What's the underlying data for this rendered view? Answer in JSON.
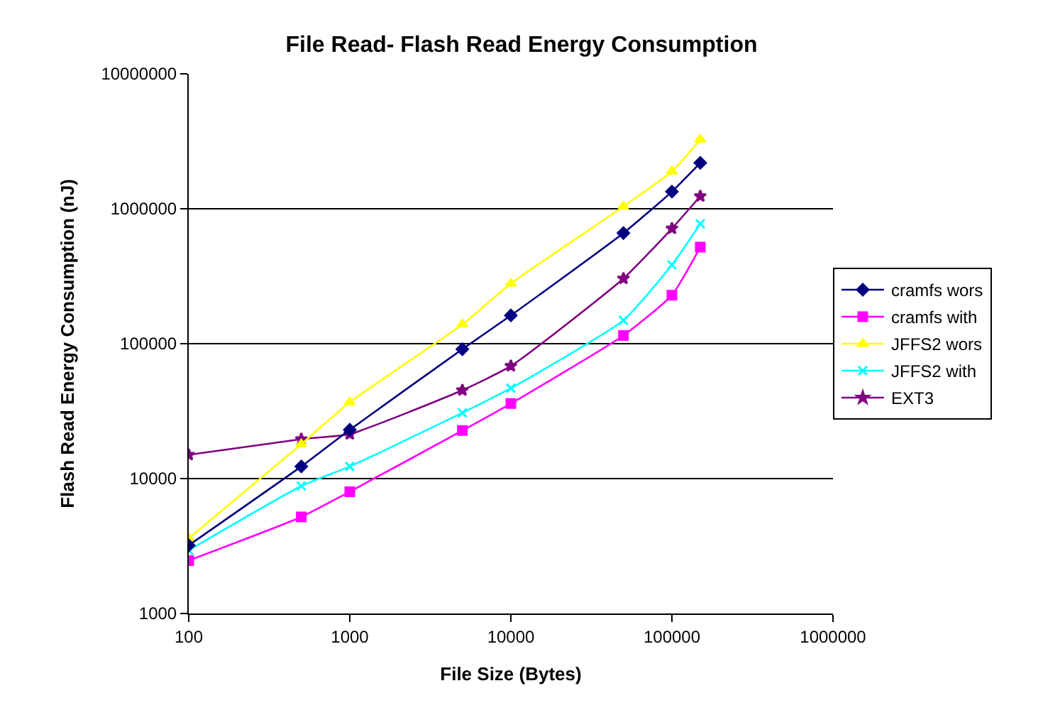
{
  "chart_data": {
    "type": "line",
    "title": "File Read- Flash Read Energy Consumption",
    "xlabel": "File Size (Bytes)",
    "ylabel": "Flash Read Energy Consumption (nJ)",
    "x": [
      100,
      500,
      1000,
      5000,
      10000,
      50000,
      100000,
      150000
    ],
    "series": [
      {
        "name": "cramfs wors",
        "color": "#000080",
        "marker": "diamond",
        "values": [
          3200,
          12300,
          23000,
          91000,
          162000,
          660000,
          1340000,
          2190000
        ]
      },
      {
        "name": "cramfs with",
        "color": "#ff00ff",
        "marker": "square",
        "values": [
          2470,
          5200,
          8000,
          22700,
          36000,
          115000,
          229000,
          519000
        ]
      },
      {
        "name": "JFFS2 wors",
        "color": "#ffff00",
        "marker": "triangle",
        "values": [
          3600,
          18000,
          36800,
          139000,
          279000,
          1040000,
          1890000,
          3260000
        ]
      },
      {
        "name": "JFFS2 with",
        "color": "#00ffff",
        "marker": "cross",
        "values": [
          2940,
          8800,
          12300,
          30700,
          46800,
          149000,
          384000,
          773000
        ]
      },
      {
        "name": "EXT3",
        "color": "#800080",
        "marker": "star",
        "values": [
          15000,
          19600,
          21400,
          45200,
          68300,
          304000,
          714000,
          1240000
        ]
      }
    ],
    "log": "xy",
    "xlim": [
      100,
      1000000
    ],
    "xticks": [
      100,
      1000,
      10000,
      100000,
      1000000
    ],
    "ylim": [
      1000,
      10000000
    ],
    "yticks": [
      1000,
      10000,
      100000,
      1000000,
      10000000
    ],
    "grid": "y",
    "legend": "right",
    "line_style": "solid"
  }
}
